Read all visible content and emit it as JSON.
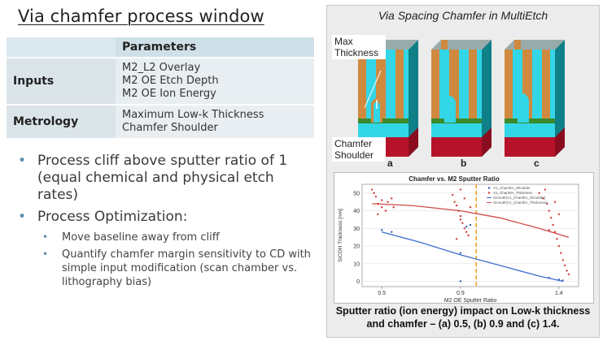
{
  "title": "Via chamfer process window",
  "table": {
    "header": "Parameters",
    "rows": [
      {
        "label": "Inputs",
        "values": [
          "M2_L2 Overlay",
          "M2 OE Etch Depth",
          "M2 OE Ion Energy"
        ]
      },
      {
        "label": "Metrology",
        "values": [
          "Maximum Low-k Thickness",
          "Chamfer Shoulder"
        ]
      }
    ]
  },
  "bullets": [
    {
      "level": 1,
      "text": "Process cliff above sputter ratio of 1 (equal chemical and physical etch rates)"
    },
    {
      "level": 1,
      "text": "Process Optimization:"
    },
    {
      "level": 2,
      "text": "Move baseline away from cliff"
    },
    {
      "level": 2,
      "text": "Quantify chamfer margin sensitivity to CD with simple input modification (scan chamber vs. lithography bias)"
    }
  ],
  "panel": {
    "title": "Via Spacing  Chamfer in MultiEtch",
    "label_max": "Max Thickness",
    "label_shoulder": "Chamfer Shoulder",
    "sub_labels": [
      "a",
      "b",
      "c"
    ],
    "caption": "Sputter ratio (ion energy) impact on Low-k thickness and chamfer – (a) 0.5, (b) 0.9 and (c) 1.4."
  },
  "colors": {
    "cyan": "#33d6e6",
    "orange": "#cf8a3f",
    "red": "#b6122a",
    "green": "#3b8a2c",
    "accent": "#5b8fa8"
  },
  "chart_data": {
    "type": "scatter",
    "title": "Chamfer vs. M2 Sputter Ratio",
    "xlabel": "M2 OE Sputter Ratio",
    "ylabel": "SiCOH Thickness [nm]",
    "xticks": [
      0.5,
      0.9,
      1.4
    ],
    "yticks": [
      0,
      10,
      20,
      30,
      40,
      50
    ],
    "xlim": [
      0.4,
      1.5
    ],
    "ylim": [
      -3,
      55
    ],
    "legend": [
      "V1_Chamfer_Shoulder",
      "V1_Chamfer_Thickness",
      "Smooth(V1_Chamfer_Shoulder)",
      "Smooth(V1_Chamfer_Thickness)"
    ],
    "series": [
      {
        "name": "V1_Chamfer_Shoulder",
        "color": "#3b5bbf",
        "points": [
          [
            0.5,
            29
          ],
          [
            0.55,
            28
          ],
          [
            0.9,
            16
          ],
          [
            0.9,
            0
          ],
          [
            1.35,
            2
          ],
          [
            1.4,
            1
          ],
          [
            1.42,
            0.5
          ],
          [
            0.93,
            31
          ],
          [
            0.95,
            32
          ]
        ]
      },
      {
        "name": "V1_Chamfer_Thickness",
        "color": "#d03a3a",
        "points": [
          [
            0.45,
            52
          ],
          [
            0.46,
            50
          ],
          [
            0.47,
            48
          ],
          [
            0.48,
            44
          ],
          [
            0.5,
            46
          ],
          [
            0.5,
            42
          ],
          [
            0.52,
            40
          ],
          [
            0.53,
            45
          ],
          [
            0.55,
            47
          ],
          [
            0.56,
            42
          ],
          [
            0.48,
            38
          ],
          [
            0.86,
            49
          ],
          [
            0.87,
            45
          ],
          [
            0.88,
            43
          ],
          [
            0.89,
            40
          ],
          [
            0.9,
            37
          ],
          [
            0.9,
            35
          ],
          [
            0.91,
            33
          ],
          [
            0.92,
            30
          ],
          [
            0.93,
            28
          ],
          [
            0.94,
            26
          ],
          [
            0.9,
            52
          ],
          [
            0.92,
            47
          ],
          [
            0.95,
            42
          ],
          [
            0.88,
            24
          ],
          [
            1.3,
            50
          ],
          [
            1.32,
            47
          ],
          [
            1.34,
            44
          ],
          [
            1.35,
            40
          ],
          [
            1.36,
            36
          ],
          [
            1.37,
            32
          ],
          [
            1.38,
            28
          ],
          [
            1.39,
            24
          ],
          [
            1.4,
            20
          ],
          [
            1.41,
            16
          ],
          [
            1.42,
            12
          ],
          [
            1.43,
            9
          ],
          [
            1.44,
            6
          ],
          [
            1.45,
            4
          ],
          [
            1.33,
            52
          ],
          [
            1.38,
            45
          ],
          [
            1.4,
            38
          ],
          [
            1.35,
            29
          ]
        ]
      }
    ],
    "smooth": [
      {
        "name": "Smooth(V1_Chamfer_Shoulder)",
        "color": "#3b6fd0",
        "points": [
          [
            0.5,
            28
          ],
          [
            0.7,
            22
          ],
          [
            0.9,
            15
          ],
          [
            1.1,
            9
          ],
          [
            1.3,
            3
          ],
          [
            1.42,
            0
          ]
        ]
      },
      {
        "name": "Smooth(V1_Chamfer_Thickness)",
        "color": "#d04a4a",
        "points": [
          [
            0.45,
            44
          ],
          [
            0.65,
            43
          ],
          [
            0.9,
            40
          ],
          [
            1.1,
            36
          ],
          [
            1.3,
            30
          ],
          [
            1.45,
            25
          ]
        ]
      }
    ],
    "cliff_x": 0.98
  }
}
